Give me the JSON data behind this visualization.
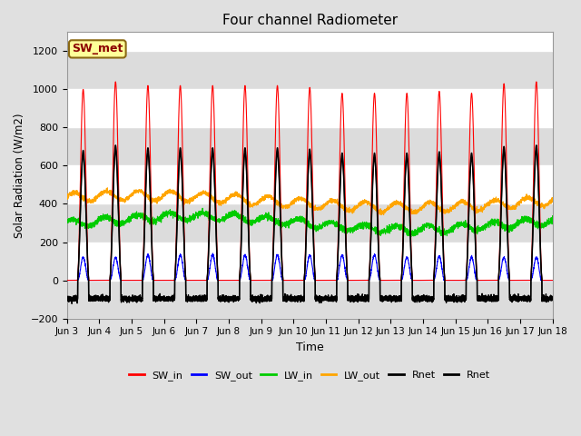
{
  "title": "Four channel Radiometer",
  "xlabel": "Time",
  "ylabel": "Solar Radiation (W/m2)",
  "ylim": [
    -200,
    1300
  ],
  "yticks": [
    -200,
    0,
    200,
    400,
    600,
    800,
    1000,
    1200
  ],
  "annotation_text": "SW_met",
  "annotation_color": "#8B0000",
  "annotation_bg": "#FFFF99",
  "annotation_border": "#8B6914",
  "x_tick_labels": [
    "Jun 3",
    "Jun 4",
    "Jun 5",
    "Jun 6",
    "Jun 7",
    "Jun 8",
    "Jun 9",
    "Jun 10",
    "Jun 11",
    "Jun 12",
    "Jun 13",
    "Jun 14",
    "Jun 15",
    "Jun 16",
    "Jun 17",
    "Jun 18"
  ],
  "n_days": 15,
  "points_per_day": 288,
  "colors": {
    "SW_in": "#FF0000",
    "SW_out": "#0000FF",
    "LW_in": "#00CC00",
    "LW_out": "#FFA500",
    "Rnet": "#000000",
    "Rnet2": "#000000"
  },
  "line_widths": {
    "SW_in": 0.8,
    "SW_out": 0.8,
    "LW_in": 0.8,
    "LW_out": 0.8,
    "Rnet": 1.0,
    "Rnet2": 1.0
  },
  "fig_bg_color": "#E0E0E0",
  "plot_bg_color": "#FFFFFF",
  "grid_band_color": "#DCDCDC",
  "legend_labels": [
    "SW_in",
    "SW_out",
    "LW_in",
    "LW_out",
    "Rnet",
    "Rnet"
  ],
  "legend_colors": [
    "#FF0000",
    "#0000FF",
    "#00CC00",
    "#FFA500",
    "#000000",
    "#000000"
  ]
}
